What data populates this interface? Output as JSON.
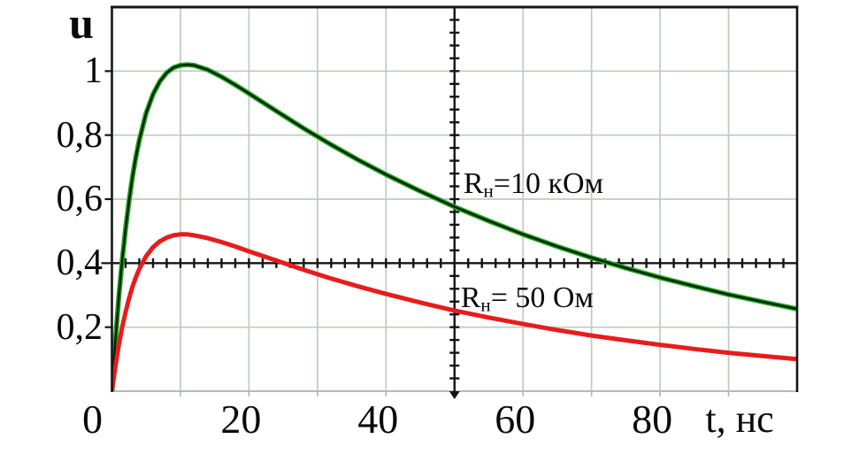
{
  "figure": {
    "background": "#ffffff",
    "text_color": "#0a0a0a"
  },
  "chart_data": {
    "type": "line",
    "title": "",
    "xlabel": "t, нс",
    "ylabel": "u",
    "xlim": [
      0,
      100
    ],
    "ylim": [
      0,
      1.2
    ],
    "grid": true,
    "grid_color": "#bfcbbf",
    "frame_color": "#151515",
    "bottom_axis_color": "#afbfaf",
    "x_major_grid_step": 10,
    "y_major_grid_step": 0.2,
    "x_tick_labels": [
      {
        "value": 0,
        "label": "0"
      },
      {
        "value": 20,
        "label": "20"
      },
      {
        "value": 40,
        "label": "40"
      },
      {
        "value": 60,
        "label": "60"
      },
      {
        "value": 80,
        "label": "80"
      }
    ],
    "y_tick_labels": [
      {
        "value": 1.0,
        "label": "1"
      },
      {
        "value": 0.8,
        "label": "0,8"
      },
      {
        "value": 0.6,
        "label": "0,6"
      },
      {
        "value": 0.4,
        "label": "0,4"
      },
      {
        "value": 0.2,
        "label": "0,2"
      }
    ],
    "crosshair_axes": {
      "color": "#141414",
      "x_position": 50,
      "y_position": 0.4,
      "x_minor_tick_step": 2,
      "y_minor_tick_step": 0.04
    },
    "x": [
      0,
      0.5,
      1,
      1.5,
      2,
      2.5,
      3,
      3.5,
      4,
      5,
      6,
      7,
      8,
      9,
      10,
      11,
      12,
      14,
      16,
      18,
      20,
      24,
      28,
      32,
      36,
      40,
      45,
      50,
      55,
      60,
      65,
      70,
      75,
      80,
      85,
      90,
      95,
      100
    ],
    "series": [
      {
        "name": "Rн=10 кОм",
        "color": "#1ea21e",
        "core_color": "#041f04",
        "values": [
          0,
          0.157,
          0.292,
          0.409,
          0.509,
          0.595,
          0.669,
          0.732,
          0.785,
          0.869,
          0.928,
          0.968,
          0.995,
          1.011,
          1.018,
          1.02,
          1.018,
          1.004,
          0.982,
          0.957,
          0.93,
          0.875,
          0.821,
          0.77,
          0.722,
          0.677,
          0.625,
          0.576,
          0.532,
          0.49,
          0.452,
          0.417,
          0.385,
          0.355,
          0.328,
          0.302,
          0.279,
          0.257
        ]
      },
      {
        "name": "Rн= 50 Ом",
        "color": "#e71c1c",
        "core_color": null,
        "values": [
          0,
          0.077,
          0.143,
          0.2,
          0.248,
          0.29,
          0.326,
          0.356,
          0.382,
          0.422,
          0.45,
          0.468,
          0.48,
          0.487,
          0.49,
          0.49,
          0.487,
          0.478,
          0.466,
          0.452,
          0.437,
          0.408,
          0.379,
          0.352,
          0.327,
          0.304,
          0.277,
          0.252,
          0.23,
          0.21,
          0.191,
          0.174,
          0.159,
          0.145,
          0.132,
          0.12,
          0.11,
          0.1
        ]
      }
    ],
    "annotations": [
      {
        "prefix": "R",
        "sub": "н",
        "rest": "=10 кОм",
        "t": 51.3,
        "u_top": 0.708
      },
      {
        "prefix": "R",
        "sub": "н",
        "rest": "= 50 Ом",
        "t": 50.9,
        "u_top": 0.351
      }
    ],
    "legend": "none"
  }
}
